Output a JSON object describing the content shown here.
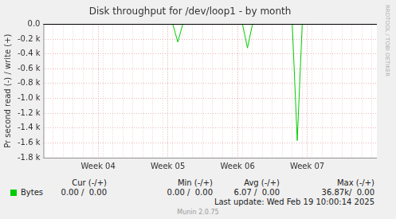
{
  "chart_data": {
    "type": "line",
    "title": "Disk throughput for /dev/loop1 - by month",
    "ylabel": "Pr second read (-) / write (+)",
    "categories": [
      null,
      null,
      null,
      null,
      null,
      null,
      null,
      null,
      null,
      null,
      null,
      "Week 04",
      null,
      null,
      null,
      null,
      null,
      null,
      null,
      null,
      null,
      null,
      null,
      null,
      null,
      "Week 05",
      null,
      null,
      null,
      null,
      null,
      null,
      null,
      null,
      null,
      null,
      null,
      null,
      null,
      "Week 06",
      null,
      null,
      null,
      null,
      null,
      null,
      null,
      null,
      null,
      null,
      null,
      null,
      null,
      "Week 07",
      null,
      null,
      null,
      null,
      null,
      null,
      null,
      null,
      null,
      null,
      null,
      null,
      null,
      null
    ],
    "series": [
      {
        "name": "Bytes",
        "color": "#00cc00",
        "values": [
          0,
          0,
          0,
          0,
          0,
          0,
          0,
          0,
          0,
          0,
          0,
          0,
          0,
          0,
          0,
          0,
          0,
          0,
          0,
          0,
          0,
          0,
          0,
          0,
          0,
          0,
          0,
          -240,
          0,
          0,
          0,
          0,
          0,
          0,
          0,
          0,
          0,
          0,
          0,
          0,
          0,
          -320,
          0,
          0,
          0,
          0,
          0,
          0,
          0,
          0,
          0,
          -1570,
          0,
          0,
          0,
          0,
          0,
          0,
          0,
          0,
          0,
          0,
          0,
          0,
          0,
          0,
          0,
          0
        ]
      }
    ],
    "ylim": [
      -1800,
      0
    ],
    "yticks": [
      {
        "value": -1800,
        "label": "-1.8 k"
      },
      {
        "value": -1600,
        "label": "-1.6 k"
      },
      {
        "value": -1400,
        "label": "-1.4 k"
      },
      {
        "value": -1200,
        "label": "-1.2 k"
      },
      {
        "value": -1000,
        "label": "-1.0 k"
      },
      {
        "value": -800,
        "label": "-0.8 k"
      },
      {
        "value": -600,
        "label": "-0.6 k"
      },
      {
        "value": -400,
        "label": "-0.4 k"
      },
      {
        "value": -200,
        "label": "-0.2 k"
      },
      {
        "value": 0,
        "label": "0.0"
      }
    ],
    "grid": true
  },
  "legend_table": {
    "headers": [
      "Cur (-/+)",
      "Min (-/+)",
      "Avg (-/+)",
      "Max (-/+)"
    ],
    "rows": [
      [
        "0.00 /  0.00",
        "0.00 /  0.00",
        "6.07 /  0.00",
        "36.87k/  0.00"
      ]
    ]
  },
  "last_update": "Last update: Wed Feb 19 10:00:14 2025",
  "footer": "Munin 2.0.75",
  "side_text": "RRDTOOL / TOBI OETIKER"
}
